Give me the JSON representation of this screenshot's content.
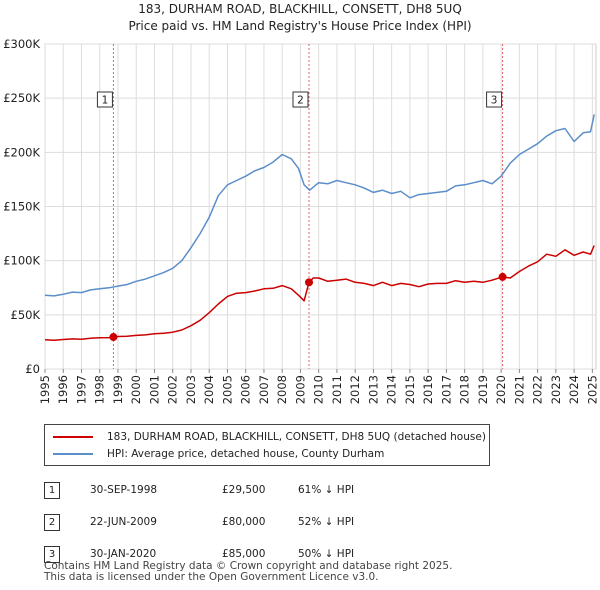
{
  "title_line1": "183, DURHAM ROAD, BLACKHILL, CONSETT, DH8 5UQ",
  "title_line2": "Price paid vs. HM Land Registry's House Price Index (HPI)",
  "chart_data": {
    "type": "line",
    "title": "183, DURHAM ROAD, BLACKHILL, CONSETT, DH8 5UQ — Price paid vs. HM Land Registry's House Price Index (HPI)",
    "xlabel": "",
    "ylabel": "",
    "xlim": [
      1995,
      2025.2
    ],
    "ylim": [
      0,
      300000
    ],
    "x_ticks": [
      1995,
      1996,
      1997,
      1998,
      1999,
      2000,
      2001,
      2002,
      2003,
      2004,
      2005,
      2006,
      2007,
      2008,
      2009,
      2010,
      2011,
      2012,
      2013,
      2014,
      2015,
      2016,
      2017,
      2018,
      2019,
      2020,
      2021,
      2022,
      2023,
      2024,
      2025
    ],
    "y_ticks": [
      {
        "value": 0,
        "label": "£0"
      },
      {
        "value": 50000,
        "label": "£50K"
      },
      {
        "value": 100000,
        "label": "£100K"
      },
      {
        "value": 150000,
        "label": "£150K"
      },
      {
        "value": 200000,
        "label": "£200K"
      },
      {
        "value": 250000,
        "label": "£250K"
      },
      {
        "value": 300000,
        "label": "£300K"
      }
    ],
    "grid": true,
    "series": [
      {
        "name": "183, DURHAM ROAD, BLACKHILL, CONSETT, DH8 5UQ (detached house)",
        "color": "#cc0000",
        "x": [
          1995.0,
          1995.5,
          1996.0,
          1996.5,
          1997.0,
          1997.5,
          1998.0,
          1998.5,
          1998.75,
          1999.0,
          1999.5,
          2000.0,
          2000.5,
          2001.0,
          2001.5,
          2002.0,
          2002.5,
          2003.0,
          2003.5,
          2004.0,
          2004.5,
          2005.0,
          2005.5,
          2006.0,
          2006.5,
          2007.0,
          2007.5,
          2008.0,
          2008.5,
          2008.9,
          2009.2,
          2009.47,
          2009.7,
          2010.0,
          2010.5,
          2011.0,
          2011.5,
          2012.0,
          2012.5,
          2013.0,
          2013.5,
          2014.0,
          2014.5,
          2015.0,
          2015.5,
          2016.0,
          2016.5,
          2017.0,
          2017.5,
          2018.0,
          2018.5,
          2019.0,
          2019.5,
          2020.08,
          2020.5,
          2021.0,
          2021.5,
          2022.0,
          2022.5,
          2023.0,
          2023.5,
          2024.0,
          2024.5,
          2024.9,
          2025.1
        ],
        "values": [
          27000,
          26500,
          27200,
          27800,
          27500,
          28300,
          28800,
          29000,
          29500,
          30000,
          30200,
          31000,
          31500,
          32500,
          33000,
          34000,
          36000,
          40000,
          45000,
          52000,
          60000,
          67000,
          70000,
          70500,
          72000,
          74000,
          74500,
          77000,
          74000,
          68000,
          63000,
          80000,
          84000,
          84000,
          81000,
          82000,
          83000,
          80000,
          79000,
          77000,
          80000,
          77000,
          79000,
          78000,
          76000,
          78500,
          79000,
          79000,
          81500,
          80000,
          81000,
          80000,
          82000,
          85000,
          84000,
          90000,
          95000,
          99000,
          106000,
          104000,
          110000,
          105000,
          108000,
          106000,
          114000
        ]
      },
      {
        "name": "HPI: Average price, detached house, County Durham",
        "color": "#5b8ec9",
        "x": [
          1995.0,
          1995.5,
          1996.0,
          1996.5,
          1997.0,
          1997.5,
          1998.0,
          1998.5,
          1999.0,
          1999.5,
          2000.0,
          2000.5,
          2001.0,
          2001.5,
          2002.0,
          2002.5,
          2003.0,
          2003.5,
          2004.0,
          2004.5,
          2005.0,
          2005.5,
          2006.0,
          2006.5,
          2007.0,
          2007.5,
          2008.0,
          2008.5,
          2008.9,
          2009.2,
          2009.5,
          2010.0,
          2010.5,
          2011.0,
          2011.5,
          2012.0,
          2012.5,
          2013.0,
          2013.5,
          2014.0,
          2014.5,
          2015.0,
          2015.5,
          2016.0,
          2016.5,
          2017.0,
          2017.5,
          2018.0,
          2018.5,
          2019.0,
          2019.5,
          2020.0,
          2020.5,
          2021.0,
          2021.5,
          2022.0,
          2022.5,
          2023.0,
          2023.5,
          2024.0,
          2024.5,
          2024.9,
          2025.1
        ],
        "values": [
          68000,
          67500,
          69000,
          71000,
          70500,
          73000,
          74000,
          75000,
          76500,
          78000,
          81000,
          83000,
          86000,
          89000,
          93000,
          100000,
          112000,
          125000,
          140000,
          160000,
          170000,
          174000,
          178000,
          183000,
          186000,
          191000,
          198000,
          194000,
          185000,
          170000,
          165000,
          172000,
          171000,
          174000,
          172000,
          170000,
          167000,
          163000,
          165000,
          162000,
          164000,
          158000,
          161000,
          162000,
          163000,
          164000,
          169000,
          170000,
          172000,
          174000,
          171000,
          178000,
          190000,
          198000,
          203000,
          208000,
          215000,
          220000,
          222000,
          210000,
          218000,
          219000,
          235000
        ]
      }
    ],
    "sales": [
      {
        "label": "1",
        "x": 1998.75,
        "value": 29500
      },
      {
        "label": "2",
        "x": 2009.47,
        "value": 80000
      },
      {
        "label": "3",
        "x": 2020.08,
        "value": 85000
      }
    ]
  },
  "legend": {
    "property_label": "183, DURHAM ROAD, BLACKHILL, CONSETT, DH8 5UQ (detached house)",
    "hpi_label": "HPI: Average price, detached house, County Durham",
    "property_color": "#cc0000",
    "hpi_color": "#5b8ec9"
  },
  "transactions": [
    {
      "num": "1",
      "date": "30-SEP-1998",
      "price": "£29,500",
      "hpi": "61% ↓ HPI"
    },
    {
      "num": "2",
      "date": "22-JUN-2009",
      "price": "£80,000",
      "hpi": "52% ↓ HPI"
    },
    {
      "num": "3",
      "date": "30-JAN-2020",
      "price": "£85,000",
      "hpi": "50% ↓ HPI"
    }
  ],
  "footer": {
    "line1": "Contains HM Land Registry data © Crown copyright and database right 2025.",
    "line2": "This data is licensed under the Open Government Licence v3.0."
  }
}
